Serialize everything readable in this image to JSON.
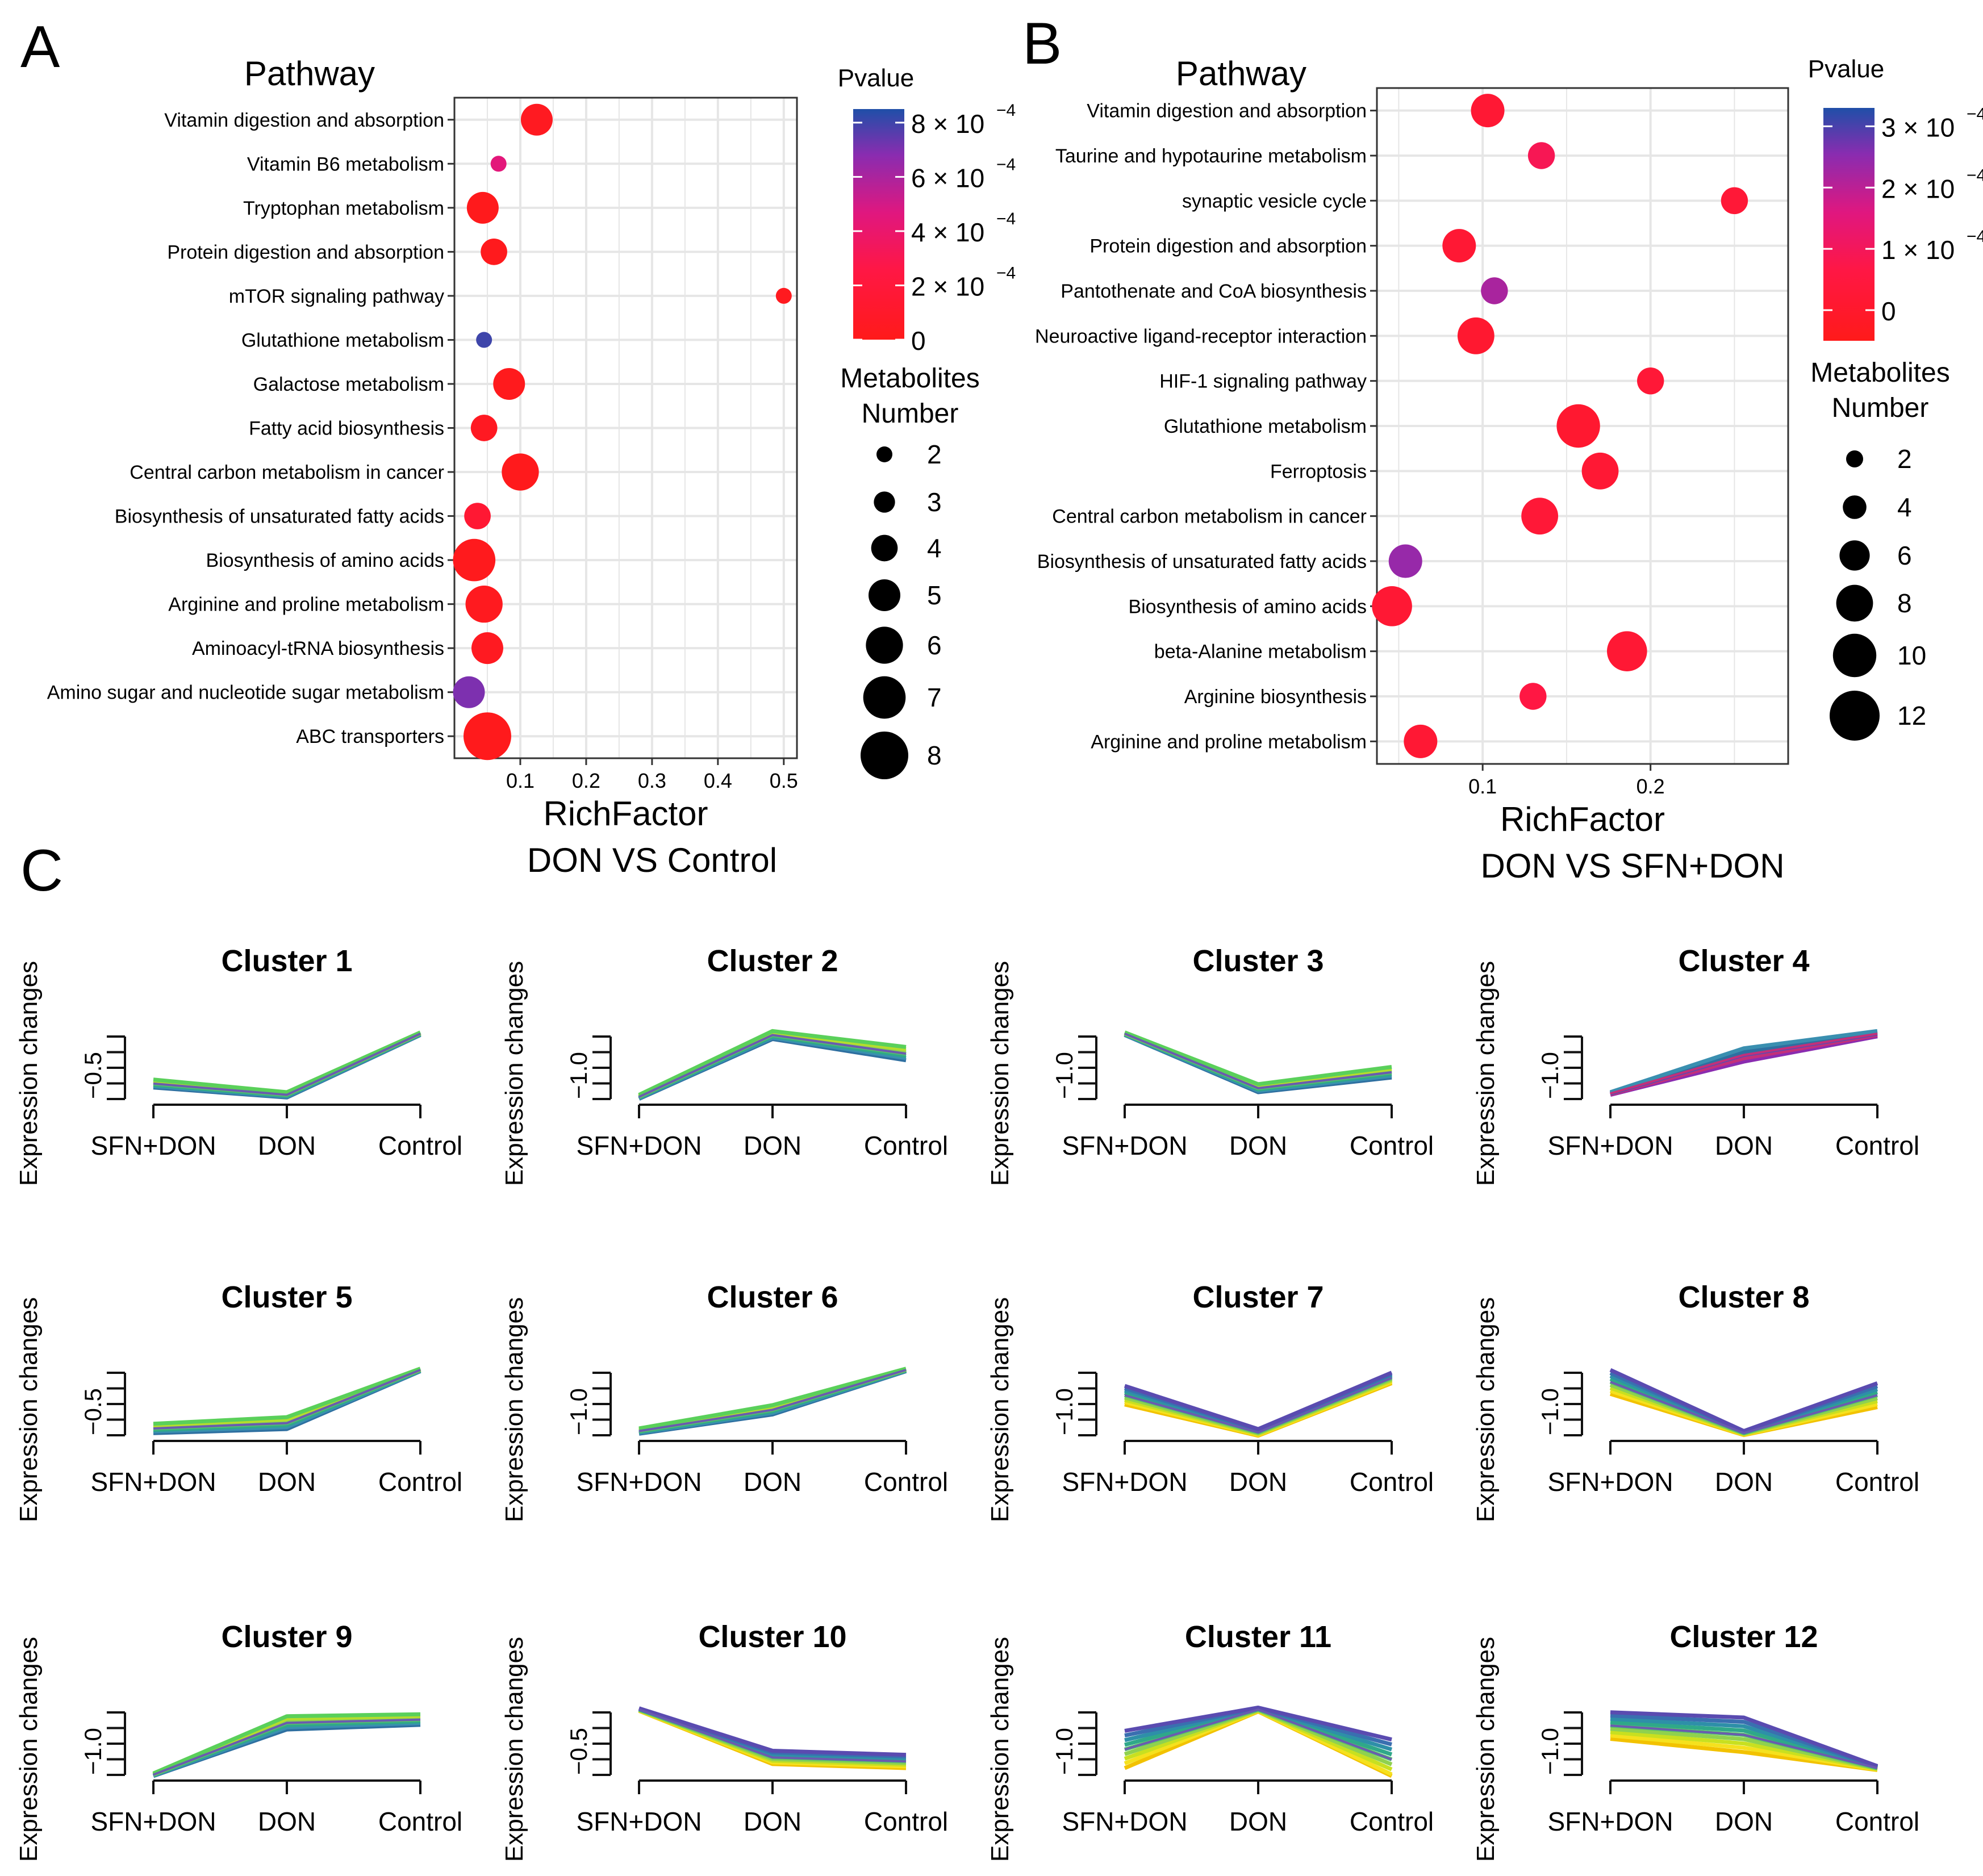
{
  "panel_labels": {
    "a": "A",
    "b": "B",
    "c": "C"
  },
  "legend_text": {
    "pvalue": "Pvalue",
    "metabolites_line1": "Metabolites",
    "metabolites_line2": "Number",
    "exp_suffix": "−4"
  },
  "colors": {
    "low_p": "#ff1a1a",
    "mid_p": "#e01585",
    "mid2_p": "#8a2cb0",
    "high_p": "#1f4fa8"
  },
  "chart_data": [
    {
      "id": "A",
      "type": "scatter",
      "subtitle": "DON VS Control",
      "title": "Pathway",
      "xlabel": "RichFactor",
      "xlim": [
        0.0,
        0.52
      ],
      "xticks": [
        0.1,
        0.2,
        0.3,
        0.4,
        0.5
      ],
      "xtick_labels": [
        "0.1",
        "0.2",
        "0.3",
        "0.4",
        "0.5"
      ],
      "pvalue_range": [
        0,
        0.00085
      ],
      "pvalue_legend": [
        {
          "value": 0.0008,
          "mant": "8 × 10"
        },
        {
          "value": 0.0006,
          "mant": "6 × 10"
        },
        {
          "value": 0.0004,
          "mant": "4 × 10"
        },
        {
          "value": 0.0002,
          "mant": "2 × 10"
        },
        {
          "value": 0,
          "mant": "0"
        }
      ],
      "size_legend": [
        2,
        3,
        4,
        5,
        6,
        7,
        8
      ],
      "size_range": [
        2,
        8
      ],
      "points": [
        {
          "pathway": "Vitamin digestion and absorption",
          "rich": 0.125,
          "count": 5,
          "pvalue": 4e-05
        },
        {
          "pathway": "Vitamin B6 metabolism",
          "rich": 0.067,
          "count": 2,
          "pvalue": 0.00045
        },
        {
          "pathway": "Tryptophan metabolism",
          "rich": 0.043,
          "count": 5,
          "pvalue": 1e-05
        },
        {
          "pathway": "Protein digestion and absorption",
          "rich": 0.06,
          "count": 4,
          "pvalue": 2e-05
        },
        {
          "pathway": "mTOR signaling pathway",
          "rich": 0.5,
          "count": 2,
          "pvalue": 3e-05
        },
        {
          "pathway": "Glutathione metabolism",
          "rich": 0.045,
          "count": 2,
          "pvalue": 0.0008
        },
        {
          "pathway": "Galactose metabolism",
          "rich": 0.083,
          "count": 5,
          "pvalue": 2e-05
        },
        {
          "pathway": "Fatty acid biosynthesis",
          "rich": 0.045,
          "count": 4,
          "pvalue": 5e-05
        },
        {
          "pathway": "Central carbon metabolism in cancer",
          "rich": 0.1,
          "count": 6,
          "pvalue": 1e-05
        },
        {
          "pathway": "Biosynthesis of unsaturated fatty acids",
          "rich": 0.035,
          "count": 4,
          "pvalue": 0.00015
        },
        {
          "pathway": "Biosynthesis of amino acids",
          "rich": 0.03,
          "count": 7,
          "pvalue": 2e-05
        },
        {
          "pathway": "Arginine and proline metabolism",
          "rich": 0.045,
          "count": 6,
          "pvalue": 3e-05
        },
        {
          "pathway": "Aminoacyl-tRNA biosynthesis",
          "rich": 0.05,
          "count": 5,
          "pvalue": 4e-05
        },
        {
          "pathway": "Amino sugar and nucleotide sugar metabolism",
          "rich": 0.022,
          "count": 5,
          "pvalue": 0.0007
        },
        {
          "pathway": "ABC transporters",
          "rich": 0.05,
          "count": 8,
          "pvalue": 1e-05
        }
      ]
    },
    {
      "id": "B",
      "type": "scatter",
      "subtitle": "DON VS SFN+DON",
      "title": "Pathway",
      "xlabel": "RichFactor",
      "xlim": [
        0.037,
        0.282
      ],
      "xticks": [
        0.1,
        0.2
      ],
      "xtick_labels": [
        "0.1",
        "0.2"
      ],
      "pvalue_range": [
        -5e-05,
        0.00033
      ],
      "pvalue_legend": [
        {
          "value": 0.0003,
          "mant": "3 × 10"
        },
        {
          "value": 0.0002,
          "mant": "2 × 10"
        },
        {
          "value": 0.0001,
          "mant": "1 × 10"
        },
        {
          "value": 0,
          "mant": "0"
        }
      ],
      "size_legend": [
        2,
        4,
        6,
        8,
        10,
        12
      ],
      "size_range": [
        2,
        12
      ],
      "points": [
        {
          "pathway": "Vitamin digestion and absorption",
          "rich": 0.103,
          "count": 7,
          "pvalue": 2e-05
        },
        {
          "pathway": "Taurine and hypotaurine metabolism",
          "rich": 0.135,
          "count": 5,
          "pvalue": 9e-05
        },
        {
          "pathway": "synaptic vesicle cycle",
          "rich": 0.25,
          "count": 5,
          "pvalue": 3e-05
        },
        {
          "pathway": "Protein digestion and absorption",
          "rich": 0.086,
          "count": 7,
          "pvalue": 2e-05
        },
        {
          "pathway": "Pantothenate and CoA biosynthesis",
          "rich": 0.107,
          "count": 5,
          "pvalue": 0.00022
        },
        {
          "pathway": "Neuroactive ligand-receptor interaction",
          "rich": 0.096,
          "count": 8,
          "pvalue": 1e-05
        },
        {
          "pathway": "HIF-1 signaling pathway",
          "rich": 0.2,
          "count": 5,
          "pvalue": 3e-05
        },
        {
          "pathway": "Glutathione metabolism",
          "rich": 0.157,
          "count": 10,
          "pvalue": 1e-05
        },
        {
          "pathway": "Ferroptosis",
          "rich": 0.17,
          "count": 8,
          "pvalue": 2e-05
        },
        {
          "pathway": "Central carbon metabolism in cancer",
          "rich": 0.134,
          "count": 8,
          "pvalue": 3e-05
        },
        {
          "pathway": "Biosynthesis of unsaturated fatty acids",
          "rich": 0.054,
          "count": 7,
          "pvalue": 0.00024
        },
        {
          "pathway": "Biosynthesis of amino acids",
          "rich": 0.046,
          "count": 9,
          "pvalue": 2e-05
        },
        {
          "pathway": "beta-Alanine metabolism",
          "rich": 0.186,
          "count": 9,
          "pvalue": 2e-05
        },
        {
          "pathway": "Arginine biosynthesis",
          "rich": 0.13,
          "count": 5,
          "pvalue": 6e-05
        },
        {
          "pathway": "Arginine and proline metabolism",
          "rich": 0.063,
          "count": 7,
          "pvalue": 2e-05
        }
      ]
    },
    {
      "id": "C",
      "type": "line",
      "ylabel": "Expression changes",
      "categories": [
        "SFN+DON",
        "DON",
        "Control"
      ],
      "clusters": [
        {
          "title": "Cluster 1",
          "ytick": "−0.5",
          "values": [
            0.25,
            0.08,
            1.0
          ],
          "spread": [
            0.06,
            0.04,
            0.02
          ],
          "palette": "green"
        },
        {
          "title": "Cluster 2",
          "ytick": "−1.0",
          "values": [
            0.05,
            0.98,
            0.7
          ],
          "spread": [
            0.03,
            0.06,
            0.1
          ],
          "palette": "green"
        },
        {
          "title": "Cluster 3",
          "ytick": "−1.0",
          "values": [
            1.0,
            0.18,
            0.42
          ],
          "spread": [
            0.02,
            0.06,
            0.08
          ],
          "palette": "green"
        },
        {
          "title": "Cluster 4",
          "ytick": "−1.0",
          "values": [
            0.1,
            0.68,
            1.0
          ],
          "spread": [
            0.02,
            0.1,
            0.04
          ],
          "palette": "purple"
        },
        {
          "title": "Cluster 5",
          "ytick": "−0.5",
          "values": [
            0.12,
            0.2,
            1.0
          ],
          "spread": [
            0.07,
            0.09,
            0.02
          ],
          "palette": "green"
        },
        {
          "title": "Cluster 6",
          "ytick": "−1.0",
          "values": [
            0.08,
            0.4,
            1.0
          ],
          "spread": [
            0.04,
            0.07,
            0.02
          ],
          "palette": "green"
        },
        {
          "title": "Cluster 7",
          "ytick": "−1.0",
          "values": [
            0.62,
            0.06,
            0.88
          ],
          "spread": [
            0.14,
            0.05,
            0.08
          ],
          "palette": "yellow"
        },
        {
          "title": "Cluster 8",
          "ytick": "−1.0",
          "values": [
            0.82,
            0.05,
            0.62
          ],
          "spread": [
            0.18,
            0.03,
            0.18
          ],
          "palette": "yellow"
        },
        {
          "title": "Cluster 9",
          "ytick": "−1.0",
          "values": [
            0.02,
            0.8,
            0.85
          ],
          "spread": [
            0.02,
            0.1,
            0.08
          ],
          "palette": "green"
        },
        {
          "title": "Cluster 10",
          "ytick": "−0.5",
          "values": [
            1.0,
            0.28,
            0.22
          ],
          "spread": [
            0.02,
            0.1,
            0.1
          ],
          "palette": "yellow"
        },
        {
          "title": "Cluster 11",
          "ytick": "−1.0",
          "values": [
            0.4,
            1.0,
            0.25
          ],
          "spread": [
            0.28,
            0.03,
            0.3
          ],
          "palette": "yellow"
        },
        {
          "title": "Cluster 12",
          "ytick": "−1.0",
          "values": [
            0.76,
            0.62,
            0.12
          ],
          "spread": [
            0.2,
            0.26,
            0.03
          ],
          "palette": "yellow"
        }
      ]
    }
  ]
}
